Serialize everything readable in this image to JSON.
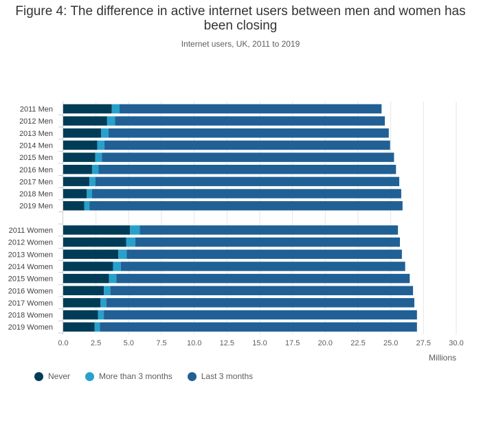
{
  "chart_data": {
    "type": "bar",
    "orientation": "horizontal",
    "stacked": true,
    "title": "Figure 4: The difference in active internet users between men and women has been closing",
    "subtitle": "Internet users, UK, 2011 to 2019",
    "xlabel": "Millions",
    "xlim": [
      0,
      30
    ],
    "xticks": [
      "0.0",
      "2.5",
      "5.0",
      "7.5",
      "10.0",
      "12.5",
      "15.0",
      "17.5",
      "20.0",
      "22.5",
      "25.0",
      "27.5",
      "30.0"
    ],
    "xtick_values": [
      0,
      2.5,
      5,
      7.5,
      10,
      12.5,
      15,
      17.5,
      20,
      22.5,
      25,
      27.5,
      30
    ],
    "categories": [
      "2011 Men",
      "2012 Men",
      "2013 Men",
      "2014 Men",
      "2015 Men",
      "2016 Men",
      "2017 Men",
      "2018 Men",
      "2019 Men",
      "",
      "2011 Women",
      "2012 Women",
      "2013 Women",
      "2014 Women",
      "2015 Women",
      "2016 Women",
      "2017 Women",
      "2018 Women",
      "2019 Women"
    ],
    "series": [
      {
        "name": "Never",
        "color": "#003c57",
        "values": [
          3.7,
          3.35,
          2.9,
          2.6,
          2.45,
          2.2,
          2.0,
          1.8,
          1.6,
          null,
          5.1,
          4.8,
          4.2,
          3.8,
          3.5,
          3.1,
          2.85,
          2.65,
          2.4
        ]
      },
      {
        "name": "More than 3 months",
        "color": "#27a0cc",
        "values": [
          0.6,
          0.6,
          0.55,
          0.55,
          0.5,
          0.5,
          0.45,
          0.4,
          0.4,
          null,
          0.75,
          0.7,
          0.65,
          0.6,
          0.55,
          0.5,
          0.45,
          0.45,
          0.4
        ]
      },
      {
        "name": "Last 3 months",
        "color": "#206095",
        "values": [
          20.0,
          20.6,
          21.4,
          21.8,
          22.3,
          22.7,
          23.2,
          23.6,
          23.9,
          null,
          19.7,
          20.2,
          21.0,
          21.7,
          22.4,
          23.1,
          23.5,
          23.9,
          24.2
        ]
      }
    ],
    "grid": true,
    "legend_position": "bottom-left"
  }
}
